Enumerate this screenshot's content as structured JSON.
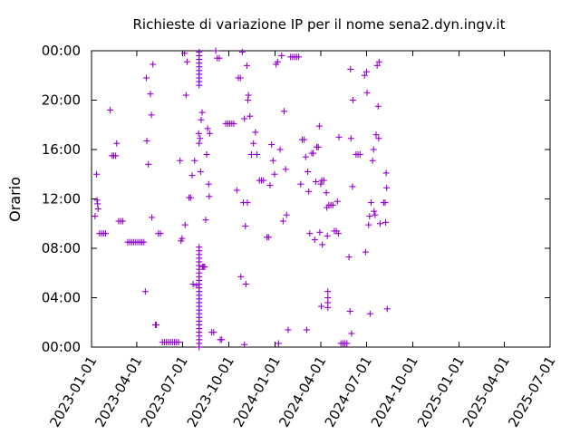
{
  "chart_data": {
    "type": "scatter",
    "title": "Richieste di variazione IP per il nome sena2.dyn.ingv.it",
    "xlabel": "",
    "ylabel": "Orario",
    "marker": "plus",
    "color": "#9400d3",
    "grid": false,
    "xlim": [
      "2023-01-01",
      "2025-07-01"
    ],
    "ylim": [
      0,
      24
    ],
    "x_ticks": [
      "2023-01-01",
      "2023-04-01",
      "2023-07-01",
      "2023-10-01",
      "2024-01-01",
      "2024-04-01",
      "2024-07-01",
      "2024-10-01",
      "2025-01-01",
      "2025-04-01",
      "2025-07-01"
    ],
    "y_ticks": [
      {
        "value": 0,
        "label": "00:00"
      },
      {
        "value": 4,
        "label": "04:00"
      },
      {
        "value": 8,
        "label": "08:00"
      },
      {
        "value": 12,
        "label": "12:00"
      },
      {
        "value": 16,
        "label": "16:00"
      },
      {
        "value": 20,
        "label": "20:00"
      },
      {
        "value": 24,
        "label": "00:00"
      }
    ],
    "points": [
      [
        "2023-01-08",
        10.6
      ],
      [
        "2023-01-11",
        14.0
      ],
      [
        "2023-01-12",
        11.9
      ],
      [
        "2023-01-13",
        11.6
      ],
      [
        "2023-01-14",
        11.2
      ],
      [
        "2023-01-17",
        9.2
      ],
      [
        "2023-01-21",
        9.2
      ],
      [
        "2023-01-25",
        9.2
      ],
      [
        "2023-01-29",
        9.2
      ],
      [
        "2023-02-07",
        19.2
      ],
      [
        "2023-02-11",
        15.5
      ],
      [
        "2023-02-14",
        15.5
      ],
      [
        "2023-02-18",
        15.5
      ],
      [
        "2023-02-20",
        16.5
      ],
      [
        "2023-02-24",
        10.2
      ],
      [
        "2023-02-28",
        10.2
      ],
      [
        "2023-03-04",
        10.2
      ],
      [
        "2023-03-14",
        8.5
      ],
      [
        "2023-03-18",
        8.5
      ],
      [
        "2023-03-22",
        8.5
      ],
      [
        "2023-03-26",
        8.5
      ],
      [
        "2023-03-30",
        8.5
      ],
      [
        "2023-04-03",
        8.5
      ],
      [
        "2023-04-07",
        8.5
      ],
      [
        "2023-04-11",
        8.5
      ],
      [
        "2023-04-15",
        8.5
      ],
      [
        "2023-04-18",
        4.5
      ],
      [
        "2023-04-20",
        21.8
      ],
      [
        "2023-04-21",
        16.7
      ],
      [
        "2023-04-24",
        14.8
      ],
      [
        "2023-04-28",
        20.5
      ],
      [
        "2023-04-30",
        18.8
      ],
      [
        "2023-05-01",
        10.5
      ],
      [
        "2023-05-03",
        22.9
      ],
      [
        "2023-05-08",
        1.8
      ],
      [
        "2023-05-10",
        1.8
      ],
      [
        "2023-05-14",
        9.2
      ],
      [
        "2023-05-18",
        9.2
      ],
      [
        "2023-05-22",
        0.4
      ],
      [
        "2023-05-26",
        0.4
      ],
      [
        "2023-05-30",
        0.4
      ],
      [
        "2023-06-03",
        0.4
      ],
      [
        "2023-06-07",
        0.4
      ],
      [
        "2023-06-11",
        0.4
      ],
      [
        "2023-06-15",
        0.4
      ],
      [
        "2023-06-19",
        0.4
      ],
      [
        "2023-06-23",
        0.4
      ],
      [
        "2023-06-26",
        15.1
      ],
      [
        "2023-06-28",
        8.6
      ],
      [
        "2023-06-30",
        8.8
      ],
      [
        "2023-07-05",
        23.8
      ],
      [
        "2023-07-06",
        9.9
      ],
      [
        "2023-07-08",
        20.4
      ],
      [
        "2023-07-10",
        23.1
      ],
      [
        "2023-07-14",
        12.1
      ],
      [
        "2023-07-17",
        12.1
      ],
      [
        "2023-07-20",
        13.9
      ],
      [
        "2023-07-22",
        5.1
      ],
      [
        "2023-07-25",
        15.1
      ],
      [
        "2023-07-29",
        5.0
      ],
      [
        "2023-08-02",
        17.3
      ],
      [
        "2023-08-03",
        16.5
      ],
      [
        "2023-08-05",
        16.9
      ],
      [
        "2023-08-06",
        14.2
      ],
      [
        "2023-08-07",
        18.4
      ],
      [
        "2023-08-09",
        19.0
      ],
      [
        "2023-08-10",
        6.5
      ],
      [
        "2023-08-12",
        6.5
      ],
      [
        "2023-08-14",
        6.5
      ],
      [
        "2023-08-16",
        10.3
      ],
      [
        "2023-08-18",
        15.6
      ],
      [
        "2023-08-20",
        17.7
      ],
      [
        "2023-08-22",
        13.2
      ],
      [
        "2023-08-23",
        12.2
      ],
      [
        "2023-08-24",
        17.3
      ],
      [
        "2023-08-28",
        1.2
      ],
      [
        "2023-09-01",
        1.2
      ],
      [
        "2023-09-05",
        24.0
      ],
      [
        "2023-09-08",
        23.4
      ],
      [
        "2023-09-12",
        23.4
      ],
      [
        "2023-09-14",
        0.6
      ],
      [
        "2023-09-17",
        0.6
      ],
      [
        "2023-09-25",
        18.1
      ],
      [
        "2023-09-29",
        18.1
      ],
      [
        "2023-10-03",
        18.1
      ],
      [
        "2023-10-07",
        18.1
      ],
      [
        "2023-10-11",
        18.1
      ],
      [
        "2023-10-17",
        12.7
      ],
      [
        "2023-10-20",
        21.8
      ],
      [
        "2023-10-24",
        21.8
      ],
      [
        "2023-10-25",
        5.7
      ],
      [
        "2023-10-28",
        23.9
      ],
      [
        "2023-10-30",
        11.7
      ],
      [
        "2023-11-01",
        18.5
      ],
      [
        "2023-11-01",
        0.2
      ],
      [
        "2023-11-03",
        9.8
      ],
      [
        "2023-11-04",
        5.1
      ],
      [
        "2023-11-06",
        22.8
      ],
      [
        "2023-11-07",
        11.7
      ],
      [
        "2023-11-08",
        20.0
      ],
      [
        "2023-11-09",
        20.4
      ],
      [
        "2023-11-12",
        18.7
      ],
      [
        "2023-11-15",
        15.6
      ],
      [
        "2023-11-19",
        16.5
      ],
      [
        "2023-11-23",
        17.4
      ],
      [
        "2023-11-26",
        15.6
      ],
      [
        "2023-12-01",
        13.5
      ],
      [
        "2023-12-05",
        13.5
      ],
      [
        "2023-12-09",
        13.5
      ],
      [
        "2023-12-16",
        8.9
      ],
      [
        "2023-12-19",
        8.9
      ],
      [
        "2023-12-22",
        13.1
      ],
      [
        "2023-12-25",
        16.4
      ],
      [
        "2023-12-28",
        15.1
      ],
      [
        "2023-12-31",
        14.0
      ],
      [
        "2024-01-03",
        22.9
      ],
      [
        "2024-01-06",
        23.1
      ],
      [
        "2024-01-08",
        0.3
      ],
      [
        "2024-01-11",
        16.0
      ],
      [
        "2024-01-14",
        23.6
      ],
      [
        "2024-01-17",
        10.2
      ],
      [
        "2024-01-19",
        19.1
      ],
      [
        "2024-01-22",
        14.4
      ],
      [
        "2024-01-24",
        10.7
      ],
      [
        "2024-01-27",
        1.4
      ],
      [
        "2024-02-01",
        23.5
      ],
      [
        "2024-02-05",
        23.5
      ],
      [
        "2024-02-09",
        23.5
      ],
      [
        "2024-02-13",
        23.5
      ],
      [
        "2024-02-17",
        23.5
      ],
      [
        "2024-02-21",
        13.2
      ],
      [
        "2024-02-24",
        16.8
      ],
      [
        "2024-02-28",
        16.8
      ],
      [
        "2024-03-02",
        15.4
      ],
      [
        "2024-03-04",
        1.4
      ],
      [
        "2024-03-06",
        14.2
      ],
      [
        "2024-03-08",
        12.6
      ],
      [
        "2024-03-10",
        9.2
      ],
      [
        "2024-03-14",
        15.7
      ],
      [
        "2024-03-17",
        15.7
      ],
      [
        "2024-03-20",
        8.7
      ],
      [
        "2024-03-22",
        13.4
      ],
      [
        "2024-03-24",
        16.2
      ],
      [
        "2024-03-27",
        16.2
      ],
      [
        "2024-03-29",
        17.9
      ],
      [
        "2024-03-30",
        9.3
      ],
      [
        "2024-04-01",
        13.2
      ],
      [
        "2024-04-02",
        3.3
      ],
      [
        "2024-04-03",
        13.5
      ],
      [
        "2024-04-04",
        8.3
      ],
      [
        "2024-04-07",
        13.5
      ],
      [
        "2024-04-12",
        12.5
      ],
      [
        "2024-04-13",
        11.3
      ],
      [
        "2024-04-14",
        9.0
      ],
      [
        "2024-04-15",
        4.5
      ],
      [
        "2024-04-15",
        4.0
      ],
      [
        "2024-04-15",
        3.6
      ],
      [
        "2024-04-15",
        3.2
      ],
      [
        "2024-04-17",
        11.5
      ],
      [
        "2024-04-21",
        11.5
      ],
      [
        "2024-04-25",
        11.5
      ],
      [
        "2024-04-28",
        9.4
      ],
      [
        "2024-05-02",
        9.4
      ],
      [
        "2024-05-04",
        11.8
      ],
      [
        "2024-05-06",
        9.2
      ],
      [
        "2024-05-07",
        17.0
      ],
      [
        "2024-05-11",
        0.3
      ],
      [
        "2024-05-15",
        0.3
      ],
      [
        "2024-05-19",
        0.3
      ],
      [
        "2024-05-23",
        0.3
      ],
      [
        "2024-05-27",
        7.3
      ],
      [
        "2024-05-29",
        2.9
      ],
      [
        "2024-05-30",
        22.5
      ],
      [
        "2024-05-31",
        16.9
      ],
      [
        "2024-06-01",
        1.1
      ],
      [
        "2024-06-03",
        13.0
      ],
      [
        "2024-06-04",
        20.0
      ],
      [
        "2024-06-10",
        15.6
      ],
      [
        "2024-06-14",
        15.6
      ],
      [
        "2024-06-18",
        15.6
      ],
      [
        "2024-06-27",
        22.0
      ],
      [
        "2024-06-29",
        7.7
      ],
      [
        "2024-07-01",
        22.3
      ],
      [
        "2024-07-02",
        20.6
      ],
      [
        "2024-07-05",
        9.9
      ],
      [
        "2024-07-07",
        10.6
      ],
      [
        "2024-07-08",
        2.7
      ],
      [
        "2024-07-10",
        11.7
      ],
      [
        "2024-07-13",
        15.1
      ],
      [
        "2024-07-15",
        16.0
      ],
      [
        "2024-07-16",
        11.0
      ],
      [
        "2024-07-18",
        10.7
      ],
      [
        "2024-07-20",
        17.2
      ],
      [
        "2024-07-22",
        22.8
      ],
      [
        "2024-07-24",
        19.5
      ],
      [
        "2024-07-25",
        16.9
      ],
      [
        "2024-07-26",
        23.1
      ],
      [
        "2024-07-28",
        10.0
      ],
      [
        "2024-08-04",
        11.7
      ],
      [
        "2024-08-07",
        11.7
      ],
      [
        "2024-08-08",
        10.1
      ],
      [
        "2024-08-09",
        14.1
      ],
      [
        "2024-08-10",
        12.9
      ],
      [
        "2024-08-11",
        3.1
      ]
    ],
    "dense_bands": [
      {
        "x": "2023-08-03",
        "from": 0.0,
        "to": 8.2,
        "step": 0.3
      },
      {
        "x": "2023-08-03",
        "from": 21.2,
        "to": 24.0,
        "step": 0.3
      }
    ]
  }
}
